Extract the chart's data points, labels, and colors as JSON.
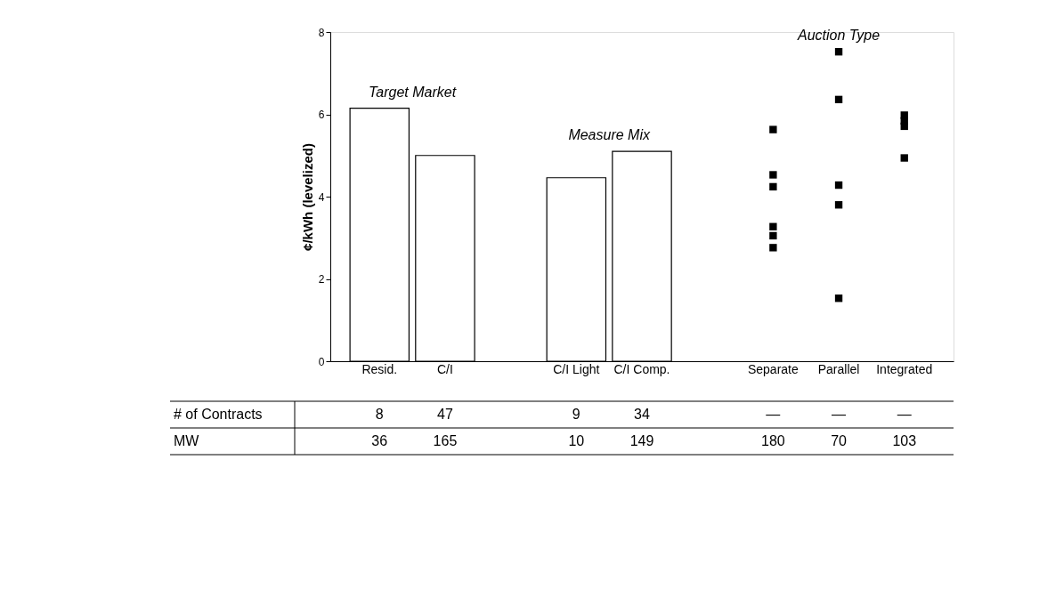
{
  "chart_data": {
    "type": "bar",
    "categories": [
      "Resid.",
      "C/I",
      null,
      "C/I Light",
      "C/I Comp.",
      null,
      "Separate",
      "Parallel",
      "Integrated"
    ],
    "ylabel": "¢/kWh (levelized)",
    "ylim": [
      0,
      8
    ],
    "yticks": [
      0,
      2,
      4,
      6,
      8
    ],
    "grid": false,
    "legend": false,
    "marker": "square",
    "series": [
      {
        "color": "#ffffff",
        "values": [
          6.15,
          5.0,
          null,
          4.46,
          5.1,
          null,
          null,
          null,
          null
        ]
      },
      {
        "type": "scatter",
        "color": "#000000",
        "x": [
          "Separate",
          "Separate",
          "Separate",
          "Separate",
          "Separate",
          "Separate",
          "Parallel",
          "Parallel",
          "Parallel",
          "Parallel",
          "Parallel",
          "Integrated",
          "Integrated",
          "Integrated",
          "Integrated"
        ],
        "values": [
          5.63,
          4.53,
          4.24,
          3.27,
          3.05,
          2.76,
          7.52,
          6.36,
          4.28,
          3.8,
          1.53,
          5.98,
          5.84,
          5.71,
          4.94
        ]
      }
    ],
    "annotations": [
      "Target Market",
      "Measure Mix",
      "Auction Type",
      "# of Contracts",
      "8",
      "47",
      "9",
      "34",
      "—",
      "—",
      "—",
      "MW",
      "36",
      "165",
      "10",
      "149",
      "180",
      "70",
      "103"
    ]
  }
}
